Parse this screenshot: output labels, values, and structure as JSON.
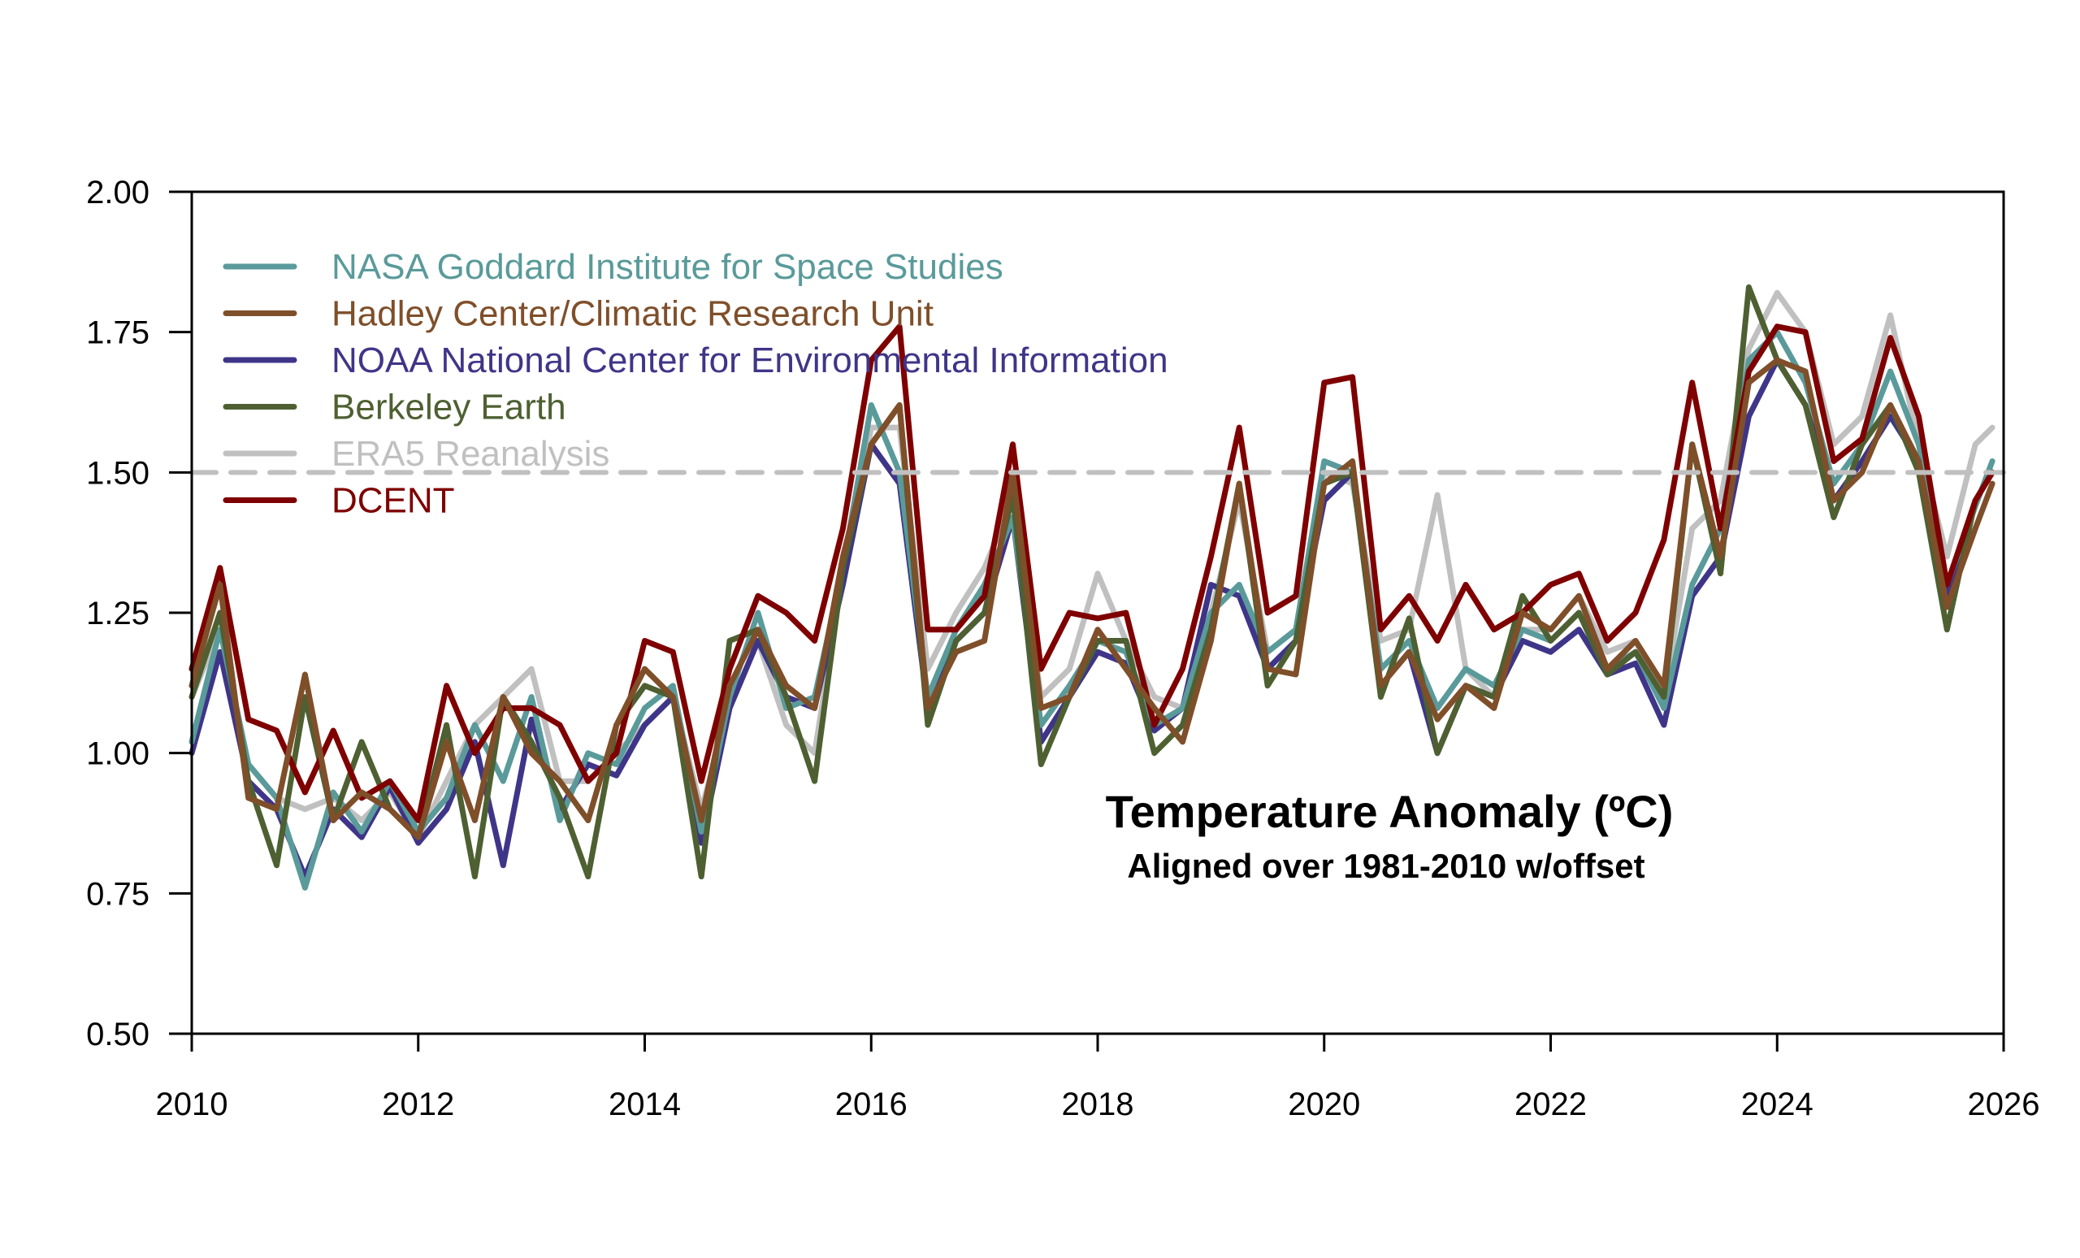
{
  "chart_data": {
    "type": "line",
    "title": "Temperature Anomaly (ºC)",
    "subtitle": "Aligned over 1981-2010 w/offset",
    "xlabel": "",
    "ylabel": "",
    "xlim": [
      2010,
      2026
    ],
    "ylim": [
      0.5,
      2.0
    ],
    "x_ticks": [
      2010,
      2012,
      2014,
      2016,
      2018,
      2020,
      2022,
      2024,
      2026
    ],
    "x_tick_labels": [
      "2010",
      "2012",
      "2014",
      "2016",
      "2018",
      "2020",
      "2022",
      "2024",
      "2026"
    ],
    "y_ticks": [
      0.5,
      0.75,
      1.0,
      1.25,
      1.5,
      1.75,
      2.0
    ],
    "y_tick_labels": [
      "0.50",
      "0.75",
      "1.00",
      "1.25",
      "1.50",
      "1.75",
      "2.00"
    ],
    "grid": false,
    "legend_position": "top-left",
    "reference_line": {
      "y": 1.5,
      "style": "dashed",
      "color": "#c0c0c0"
    },
    "x": [
      2010.0,
      2010.25,
      2010.5,
      2010.75,
      2011.0,
      2011.25,
      2011.5,
      2011.75,
      2012.0,
      2012.25,
      2012.5,
      2012.75,
      2013.0,
      2013.25,
      2013.5,
      2013.75,
      2014.0,
      2014.25,
      2014.5,
      2014.75,
      2015.0,
      2015.25,
      2015.5,
      2015.75,
      2016.0,
      2016.25,
      2016.5,
      2016.75,
      2017.0,
      2017.25,
      2017.5,
      2017.75,
      2018.0,
      2018.25,
      2018.5,
      2018.75,
      2019.0,
      2019.25,
      2019.5,
      2019.75,
      2020.0,
      2020.25,
      2020.5,
      2020.75,
      2021.0,
      2021.25,
      2021.5,
      2021.75,
      2022.0,
      2022.25,
      2022.5,
      2022.75,
      2023.0,
      2023.25,
      2023.5,
      2023.75,
      2024.0,
      2024.25,
      2024.5,
      2024.75,
      2025.0,
      2025.25,
      2025.5,
      2025.75,
      2025.9
    ],
    "series": [
      {
        "name": "NASA Goddard Institute for Space Studies",
        "color": "#5a9a9a",
        "values": [
          1.02,
          1.22,
          0.98,
          0.92,
          0.76,
          0.93,
          0.86,
          0.95,
          0.86,
          0.92,
          1.05,
          0.95,
          1.1,
          0.88,
          1.0,
          0.98,
          1.08,
          1.12,
          0.86,
          1.1,
          1.25,
          1.08,
          1.1,
          1.33,
          1.62,
          1.5,
          1.1,
          1.22,
          1.3,
          1.42,
          1.05,
          1.12,
          1.2,
          1.18,
          1.05,
          1.08,
          1.25,
          1.3,
          1.18,
          1.22,
          1.52,
          1.5,
          1.15,
          1.2,
          1.08,
          1.15,
          1.12,
          1.22,
          1.2,
          1.25,
          1.15,
          1.18,
          1.08,
          1.3,
          1.4,
          1.7,
          1.75,
          1.66,
          1.48,
          1.55,
          1.68,
          1.55,
          1.3,
          1.44,
          1.52
        ]
      },
      {
        "name": "Hadley Center/Climatic Research Unit",
        "color": "#7f4f2a",
        "values": [
          1.12,
          1.3,
          0.92,
          0.9,
          1.14,
          0.88,
          0.93,
          0.9,
          0.85,
          1.02,
          0.88,
          1.1,
          1.0,
          0.95,
          0.88,
          1.05,
          1.15,
          1.1,
          0.88,
          1.12,
          1.22,
          1.12,
          1.08,
          1.35,
          1.55,
          1.62,
          1.08,
          1.18,
          1.2,
          1.5,
          1.08,
          1.1,
          1.22,
          1.15,
          1.08,
          1.02,
          1.2,
          1.48,
          1.15,
          1.14,
          1.48,
          1.52,
          1.12,
          1.18,
          1.06,
          1.12,
          1.08,
          1.25,
          1.22,
          1.28,
          1.15,
          1.2,
          1.12,
          1.55,
          1.35,
          1.66,
          1.7,
          1.68,
          1.45,
          1.5,
          1.62,
          1.52,
          1.26,
          1.4,
          1.48
        ]
      },
      {
        "name": "NOAA National Center for Environmental Information",
        "color": "#3f3588",
        "values": [
          1.0,
          1.18,
          0.95,
          0.9,
          0.78,
          0.9,
          0.85,
          0.94,
          0.84,
          0.9,
          1.02,
          0.8,
          1.06,
          0.9,
          0.98,
          0.96,
          1.05,
          1.1,
          0.84,
          1.08,
          1.2,
          1.1,
          1.08,
          1.3,
          1.55,
          1.48,
          1.08,
          1.2,
          1.25,
          1.42,
          1.02,
          1.1,
          1.18,
          1.16,
          1.04,
          1.08,
          1.3,
          1.28,
          1.15,
          1.2,
          1.45,
          1.5,
          1.12,
          1.18,
          1.0,
          1.12,
          1.1,
          1.2,
          1.18,
          1.22,
          1.14,
          1.16,
          1.05,
          1.28,
          1.35,
          1.6,
          1.7,
          1.62,
          1.45,
          1.52,
          1.6,
          1.52,
          1.28,
          1.45,
          1.5
        ]
      },
      {
        "name": "Berkeley Earth",
        "color": "#4e6032",
        "values": [
          1.1,
          1.25,
          0.95,
          0.8,
          1.1,
          0.88,
          1.02,
          0.9,
          0.85,
          1.05,
          0.78,
          1.1,
          1.02,
          0.92,
          0.78,
          1.05,
          1.12,
          1.1,
          0.78,
          1.2,
          1.22,
          1.1,
          0.95,
          1.33,
          1.55,
          1.62,
          1.05,
          1.2,
          1.25,
          1.46,
          0.98,
          1.1,
          1.2,
          1.2,
          1.0,
          1.05,
          1.22,
          1.48,
          1.12,
          1.2,
          1.48,
          1.5,
          1.1,
          1.24,
          1.0,
          1.12,
          1.1,
          1.28,
          1.2,
          1.25,
          1.14,
          1.18,
          1.1,
          1.55,
          1.32,
          1.83,
          1.7,
          1.62,
          1.42,
          1.55,
          1.62,
          1.5,
          1.22,
          1.45,
          1.5
        ]
      },
      {
        "name": "ERA5 Reanalysis",
        "color": "#c0c0c0",
        "values": [
          1.1,
          1.22,
          0.98,
          0.92,
          0.9,
          0.92,
          0.88,
          0.93,
          0.85,
          0.95,
          1.05,
          1.1,
          1.15,
          0.95,
          0.95,
          1.0,
          1.05,
          1.1,
          0.9,
          1.08,
          1.2,
          1.05,
          1.0,
          1.32,
          1.58,
          1.58,
          1.15,
          1.25,
          1.33,
          1.45,
          1.1,
          1.15,
          1.32,
          1.2,
          1.1,
          1.08,
          1.25,
          1.45,
          1.18,
          1.22,
          1.5,
          1.48,
          1.2,
          1.22,
          1.46,
          1.15,
          1.1,
          1.22,
          1.22,
          1.28,
          1.18,
          1.2,
          1.1,
          1.4,
          1.45,
          1.72,
          1.82,
          1.75,
          1.55,
          1.6,
          1.78,
          1.55,
          1.35,
          1.55,
          1.58
        ]
      },
      {
        "name": "DCENT",
        "color": "#7f0000",
        "values": [
          1.15,
          1.33,
          1.06,
          1.04,
          0.93,
          1.04,
          0.92,
          0.95,
          0.88,
          1.12,
          1.0,
          1.08,
          1.08,
          1.05,
          0.95,
          1.0,
          1.2,
          1.18,
          0.95,
          1.15,
          1.28,
          1.25,
          1.2,
          1.4,
          1.7,
          1.76,
          1.22,
          1.22,
          1.28,
          1.55,
          1.15,
          1.25,
          1.24,
          1.25,
          1.05,
          1.15,
          1.35,
          1.58,
          1.25,
          1.28,
          1.66,
          1.67,
          1.22,
          1.28,
          1.2,
          1.3,
          1.22,
          1.25,
          1.3,
          1.32,
          1.2,
          1.25,
          1.38,
          1.66,
          1.4,
          1.68,
          1.76,
          1.75,
          1.52,
          1.56,
          1.74,
          1.6,
          1.3,
          1.45,
          1.5
        ]
      }
    ]
  }
}
